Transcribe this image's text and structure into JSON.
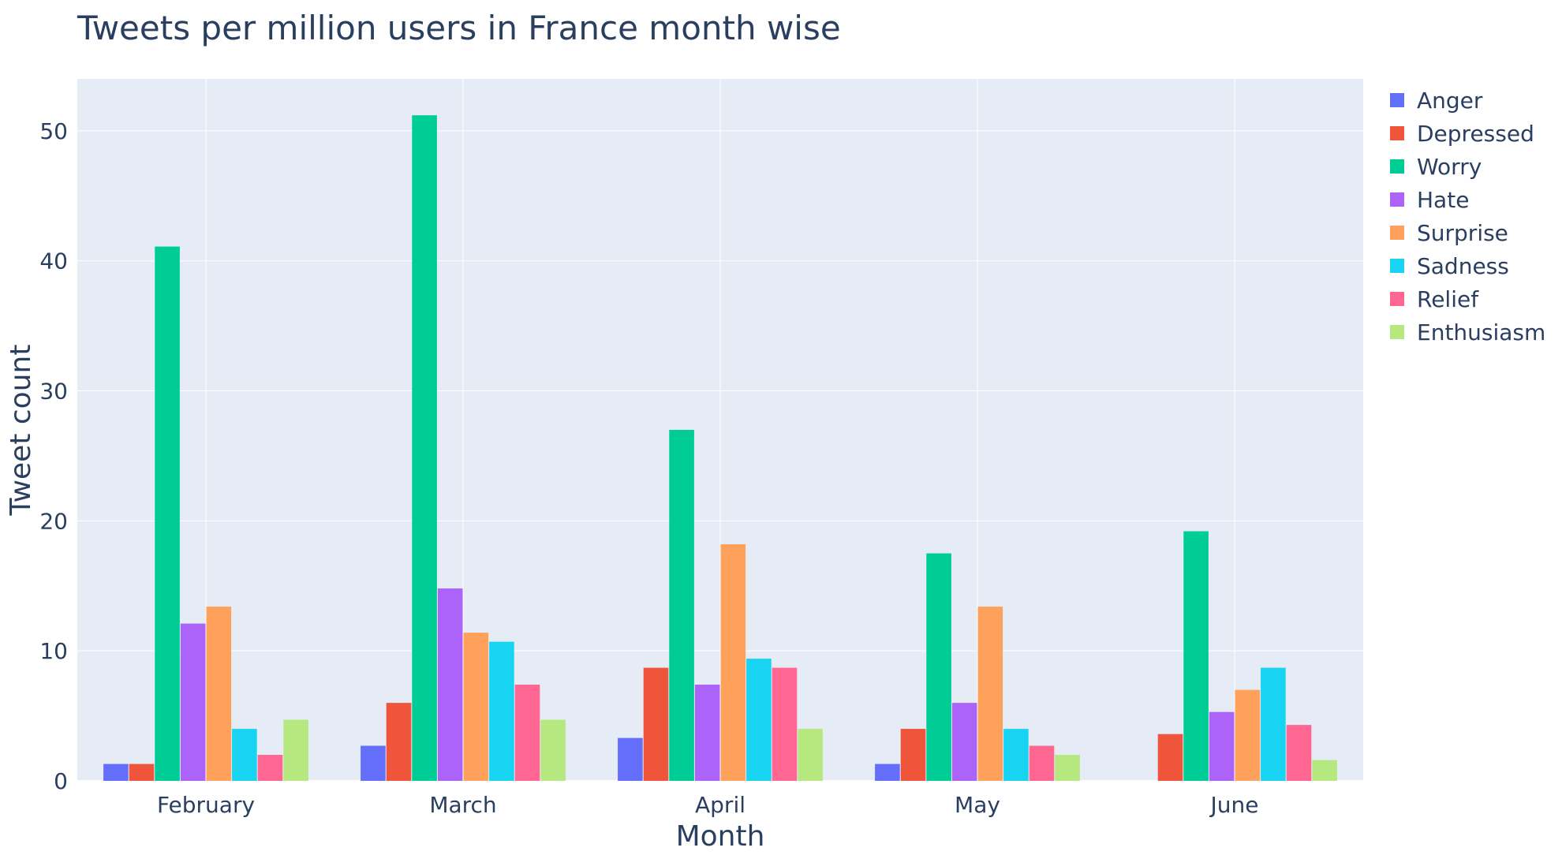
{
  "chart_data": {
    "type": "bar",
    "title": "Tweets per million users in France month wise",
    "xlabel": "Month",
    "ylabel": "Tweet count",
    "categories": [
      "February",
      "March",
      "April",
      "May",
      "June"
    ],
    "ylim": [
      0,
      54
    ],
    "yticks": [
      0,
      10,
      20,
      30,
      40,
      50
    ],
    "grid": true,
    "legend_position": "top-right",
    "plot_background": "#e5ecf6",
    "series": [
      {
        "name": "Anger",
        "color": "#636efa",
        "values": [
          1.3,
          2.7,
          3.3,
          1.3,
          0
        ]
      },
      {
        "name": "Depressed",
        "color": "#ef553b",
        "values": [
          1.3,
          6.0,
          8.7,
          4.0,
          3.6
        ]
      },
      {
        "name": "Worry",
        "color": "#00cc96",
        "values": [
          41.1,
          51.2,
          27.0,
          17.5,
          19.2
        ]
      },
      {
        "name": "Hate",
        "color": "#ab63fa",
        "values": [
          12.1,
          14.8,
          7.4,
          6.0,
          5.3
        ]
      },
      {
        "name": "Surprise",
        "color": "#ffa15a",
        "values": [
          13.4,
          11.4,
          18.2,
          13.4,
          7.0
        ]
      },
      {
        "name": "Sadness",
        "color": "#19d3f3",
        "values": [
          4.0,
          10.7,
          9.4,
          4.0,
          8.7
        ]
      },
      {
        "name": "Relief",
        "color": "#ff6692",
        "values": [
          2.0,
          7.4,
          8.7,
          2.7,
          4.3
        ]
      },
      {
        "name": "Enthusiasm",
        "color": "#b6e880",
        "values": [
          4.7,
          4.7,
          4.0,
          2.0,
          1.6
        ]
      }
    ]
  }
}
